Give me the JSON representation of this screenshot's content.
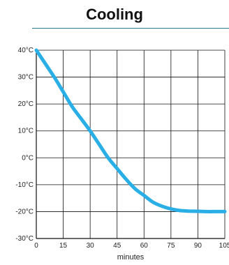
{
  "chart_data": {
    "type": "line",
    "title": "Cooling",
    "xlabel": "minutes",
    "ylabel": "",
    "xlim": [
      0,
      105
    ],
    "ylim": [
      -30,
      40
    ],
    "x_ticks": [
      0,
      15,
      30,
      45,
      60,
      75,
      90,
      105
    ],
    "y_ticks": [
      40,
      30,
      20,
      10,
      0,
      -10,
      -20,
      -30
    ],
    "y_tick_labels": [
      "40°C",
      "30°C",
      "20°C",
      "10°C",
      "0°C",
      "-10°C",
      "-20°C",
      "-30°C"
    ],
    "grid": true,
    "series": [
      {
        "color": "#29aee6",
        "x": [
          0,
          5,
          10,
          15,
          20,
          25,
          30,
          35,
          40,
          45,
          50,
          55,
          60,
          65,
          70,
          75,
          80,
          85,
          90,
          95,
          100,
          105
        ],
        "y": [
          40,
          35,
          30,
          24.5,
          19,
          14.5,
          10,
          5,
          0,
          -4,
          -8,
          -11.5,
          -14,
          -16.5,
          -18,
          -19,
          -19.6,
          -19.8,
          -19.9,
          -20,
          -20,
          -20
        ]
      }
    ]
  }
}
